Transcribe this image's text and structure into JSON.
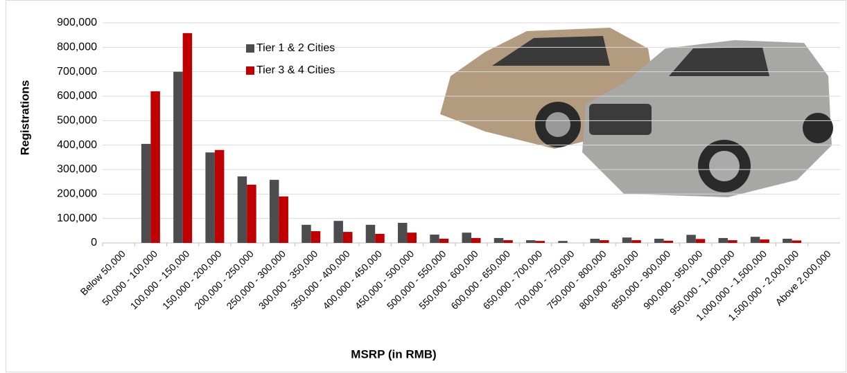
{
  "chart_data": {
    "type": "bar",
    "x_label": "MSRP (in RMB)",
    "y_label": "Registrations",
    "categories": [
      "Below 50,000",
      "50,000 - 100,000",
      "100,000 - 150,000",
      "150,000 - 200,000",
      "200,000 - 250,000",
      "250,000 - 300,000",
      "300,000 - 350,000",
      "350,000 - 400,000",
      "400,000 - 450,000",
      "450,000 - 500,000",
      "500,000 - 550,000",
      "550,000 - 600,000",
      "600,000 - 650,000",
      "650,000 - 700,000",
      "700,000 - 750,000",
      "750,000 - 800,000",
      "800,000 - 850,000",
      "850,000 - 900,000",
      "900,000 - 950,000",
      "950,000 - 1,000,000",
      "1,000,000 - 1,500,000",
      "1,500,000 - 2,000,000",
      "Above 2,000,000"
    ],
    "series": [
      {
        "name": "Tier 1 & 2 Cities",
        "color": "#4d4d4f",
        "values": [
          0,
          405000,
          700000,
          370000,
          272000,
          258000,
          74000,
          90000,
          74000,
          82000,
          34000,
          42000,
          20000,
          11000,
          8000,
          17000,
          22000,
          17000,
          33000,
          20000,
          25000,
          17000,
          0
        ]
      },
      {
        "name": "Tier 3 & 4 Cities",
        "color": "#c00000",
        "values": [
          0,
          620000,
          858000,
          380000,
          238000,
          190000,
          48000,
          45000,
          37000,
          42000,
          17000,
          20000,
          11000,
          8000,
          0,
          11000,
          11000,
          9000,
          16000,
          11000,
          14000,
          10000,
          0
        ]
      }
    ],
    "ylim": [
      0,
      900000
    ],
    "yticks": [
      0,
      {
        "value": 100000,
        "label": "100,000"
      },
      {
        "value": 200000,
        "label": "200,000"
      },
      {
        "value": 300000,
        "label": "300,000"
      },
      {
        "value": 400000,
        "label": "400,000"
      },
      {
        "value": 500000,
        "label": "500,000"
      },
      {
        "value": 600000,
        "label": "600,000"
      },
      {
        "value": 700000,
        "label": "700,000"
      },
      {
        "value": 800000,
        "label": "800,000"
      },
      {
        "value": 900000,
        "label": "900,000"
      }
    ],
    "grid": true,
    "legend": "top"
  }
}
